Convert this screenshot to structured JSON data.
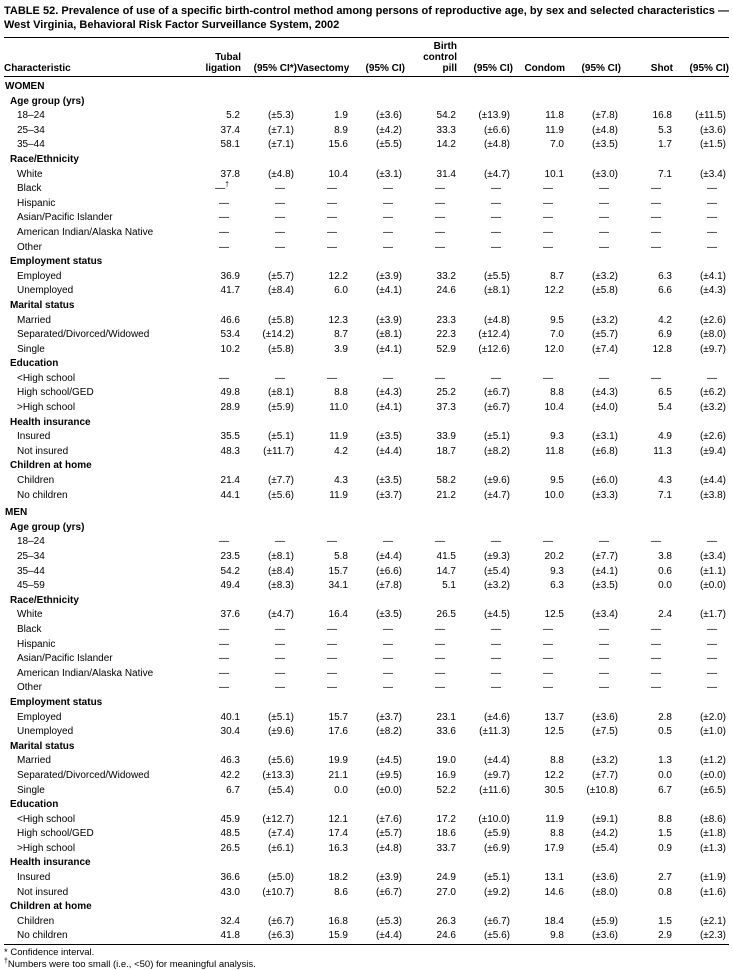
{
  "title": "TABLE 52. Prevalence of use of a specific birth-control method among persons of reproductive age, by sex and selected characteristics — West Virginia, Behavioral Risk Factor Surveillance System, 2002",
  "table": {
    "columns": [
      {
        "id": "characteristic",
        "kind": "label",
        "lines": [
          "Characteristic"
        ]
      },
      {
        "id": "tubal-ligation",
        "kind": "val",
        "lines": [
          "Tubal",
          "ligation"
        ]
      },
      {
        "id": "tubal-ligation-ci",
        "kind": "ci",
        "lines": [
          "(95% CI*)"
        ]
      },
      {
        "id": "vasectomy",
        "kind": "val",
        "lines": [
          "Vasectomy"
        ]
      },
      {
        "id": "vasectomy-ci",
        "kind": "ci",
        "lines": [
          "(95% CI)"
        ]
      },
      {
        "id": "birth-control-pill",
        "kind": "val",
        "lines": [
          "Birth",
          "control",
          "pill"
        ]
      },
      {
        "id": "birth-control-pill-ci",
        "kind": "ci",
        "lines": [
          "(95% CI)"
        ]
      },
      {
        "id": "condom",
        "kind": "val",
        "lines": [
          "Condom"
        ]
      },
      {
        "id": "condom-ci",
        "kind": "ci",
        "lines": [
          "(95% CI)"
        ]
      },
      {
        "id": "shot",
        "kind": "val",
        "lines": [
          "Shot"
        ]
      },
      {
        "id": "shot-ci",
        "kind": "ci",
        "lines": [
          "(95% CI)"
        ]
      }
    ],
    "sections": [
      {
        "label": "WOMEN",
        "groups": [
          {
            "label": "Age group (yrs)",
            "rows": [
              {
                "label": "18–24",
                "values": [
                  "5.2",
                  "(±5.3)",
                  "1.9",
                  "(±3.6)",
                  "54.2",
                  "(±13.9)",
                  "11.8",
                  "(±7.8)",
                  "16.8",
                  "(±11.5)"
                ]
              },
              {
                "label": "25–34",
                "values": [
                  "37.4",
                  "(±7.1)",
                  "8.9",
                  "(±4.2)",
                  "33.3",
                  "(±6.6)",
                  "11.9",
                  "(±4.8)",
                  "5.3",
                  "(±3.6)"
                ]
              },
              {
                "label": "35–44",
                "values": [
                  "58.1",
                  "(±7.1)",
                  "15.6",
                  "(±5.5)",
                  "14.2",
                  "(±4.8)",
                  "7.0",
                  "(±3.5)",
                  "1.7",
                  "(±1.5)"
                ]
              }
            ]
          },
          {
            "label": "Race/Ethnicity",
            "rows": [
              {
                "label": "White",
                "values": [
                  "37.8",
                  "(±4.8)",
                  "10.4",
                  "(±3.1)",
                  "31.4",
                  "(±4.7)",
                  "10.1",
                  "(±3.0)",
                  "7.1",
                  "(±3.4)"
                ]
              },
              {
                "label": "Black",
                "values": [
                  "—†",
                  "—",
                  "—",
                  "—",
                  "—",
                  "—",
                  "—",
                  "—",
                  "—",
                  "—"
                ]
              },
              {
                "label": "Hispanic",
                "values": [
                  "—",
                  "—",
                  "—",
                  "—",
                  "—",
                  "—",
                  "—",
                  "—",
                  "—",
                  "—"
                ]
              },
              {
                "label": "Asian/Pacific Islander",
                "values": [
                  "—",
                  "—",
                  "—",
                  "—",
                  "—",
                  "—",
                  "—",
                  "—",
                  "—",
                  "—"
                ]
              },
              {
                "label": "American Indian/Alaska Native",
                "values": [
                  "—",
                  "—",
                  "—",
                  "—",
                  "—",
                  "—",
                  "—",
                  "—",
                  "—",
                  "—"
                ]
              },
              {
                "label": "Other",
                "values": [
                  "—",
                  "—",
                  "—",
                  "—",
                  "—",
                  "—",
                  "—",
                  "—",
                  "—",
                  "—"
                ]
              }
            ]
          },
          {
            "label": "Employment status",
            "rows": [
              {
                "label": "Employed",
                "values": [
                  "36.9",
                  "(±5.7)",
                  "12.2",
                  "(±3.9)",
                  "33.2",
                  "(±5.5)",
                  "8.7",
                  "(±3.2)",
                  "6.3",
                  "(±4.1)"
                ]
              },
              {
                "label": "Unemployed",
                "values": [
                  "41.7",
                  "(±8.4)",
                  "6.0",
                  "(±4.1)",
                  "24.6",
                  "(±8.1)",
                  "12.2",
                  "(±5.8)",
                  "6.6",
                  "(±4.3)"
                ]
              }
            ]
          },
          {
            "label": "Marital status",
            "rows": [
              {
                "label": "Married",
                "values": [
                  "46.6",
                  "(±5.8)",
                  "12.3",
                  "(±3.9)",
                  "23.3",
                  "(±4.8)",
                  "9.5",
                  "(±3.2)",
                  "4.2",
                  "(±2.6)"
                ]
              },
              {
                "label": "Separated/Divorced/Widowed",
                "values": [
                  "53.4",
                  "(±14.2)",
                  "8.7",
                  "(±8.1)",
                  "22.3",
                  "(±12.4)",
                  "7.0",
                  "(±5.7)",
                  "6.9",
                  "(±8.0)"
                ]
              },
              {
                "label": "Single",
                "values": [
                  "10.2",
                  "(±5.8)",
                  "3.9",
                  "(±4.1)",
                  "52.9",
                  "(±12.6)",
                  "12.0",
                  "(±7.4)",
                  "12.8",
                  "(±9.7)"
                ]
              }
            ]
          },
          {
            "label": "Education",
            "rows": [
              {
                "label": "<High school",
                "values": [
                  "—",
                  "—",
                  "—",
                  "—",
                  "—",
                  "—",
                  "—",
                  "—",
                  "—",
                  "—"
                ]
              },
              {
                "label": "High school/GED",
                "values": [
                  "49.8",
                  "(±8.1)",
                  "8.8",
                  "(±4.3)",
                  "25.2",
                  "(±6.7)",
                  "8.8",
                  "(±4.3)",
                  "6.5",
                  "(±6.2)"
                ]
              },
              {
                "label": ">High school",
                "values": [
                  "28.9",
                  "(±5.9)",
                  "11.0",
                  "(±4.1)",
                  "37.3",
                  "(±6.7)",
                  "10.4",
                  "(±4.0)",
                  "5.4",
                  "(±3.2)"
                ]
              }
            ]
          },
          {
            "label": "Health insurance",
            "rows": [
              {
                "label": "Insured",
                "values": [
                  "35.5",
                  "(±5.1)",
                  "11.9",
                  "(±3.5)",
                  "33.9",
                  "(±5.1)",
                  "9.3",
                  "(±3.1)",
                  "4.9",
                  "(±2.6)"
                ]
              },
              {
                "label": "Not insured",
                "values": [
                  "48.3",
                  "(±11.7)",
                  "4.2",
                  "(±4.4)",
                  "18.7",
                  "(±8.2)",
                  "11.8",
                  "(±6.8)",
                  "11.3",
                  "(±9.4)"
                ]
              }
            ]
          },
          {
            "label": "Children at home",
            "rows": [
              {
                "label": "Children",
                "values": [
                  "21.4",
                  "(±7.7)",
                  "4.3",
                  "(±3.5)",
                  "58.2",
                  "(±9.6)",
                  "9.5",
                  "(±6.0)",
                  "4.3",
                  "(±4.4)"
                ]
              },
              {
                "label": "No children",
                "values": [
                  "44.1",
                  "(±5.6)",
                  "11.9",
                  "(±3.7)",
                  "21.2",
                  "(±4.7)",
                  "10.0",
                  "(±3.3)",
                  "7.1",
                  "(±3.8)"
                ]
              }
            ]
          }
        ]
      },
      {
        "label": "MEN",
        "groups": [
          {
            "label": "Age group (yrs)",
            "rows": [
              {
                "label": "18–24",
                "values": [
                  "—",
                  "—",
                  "—",
                  "—",
                  "—",
                  "—",
                  "—",
                  "—",
                  "—",
                  "—"
                ]
              },
              {
                "label": "25–34",
                "values": [
                  "23.5",
                  "(±8.1)",
                  "5.8",
                  "(±4.4)",
                  "41.5",
                  "(±9.3)",
                  "20.2",
                  "(±7.7)",
                  "3.8",
                  "(±3.4)"
                ]
              },
              {
                "label": "35–44",
                "values": [
                  "54.2",
                  "(±8.4)",
                  "15.7",
                  "(±6.6)",
                  "14.7",
                  "(±5.4)",
                  "9.3",
                  "(±4.1)",
                  "0.6",
                  "(±1.1)"
                ]
              },
              {
                "label": "45–59",
                "values": [
                  "49.4",
                  "(±8.3)",
                  "34.1",
                  "(±7.8)",
                  "5.1",
                  "(±3.2)",
                  "6.3",
                  "(±3.5)",
                  "0.0",
                  "(±0.0)"
                ]
              }
            ]
          },
          {
            "label": "Race/Ethnicity",
            "rows": [
              {
                "label": "White",
                "values": [
                  "37.6",
                  "(±4.7)",
                  "16.4",
                  "(±3.5)",
                  "26.5",
                  "(±4.5)",
                  "12.5",
                  "(±3.4)",
                  "2.4",
                  "(±1.7)"
                ]
              },
              {
                "label": "Black",
                "values": [
                  "—",
                  "—",
                  "—",
                  "—",
                  "—",
                  "—",
                  "—",
                  "—",
                  "—",
                  "—"
                ]
              },
              {
                "label": "Hispanic",
                "values": [
                  "—",
                  "—",
                  "—",
                  "—",
                  "—",
                  "—",
                  "—",
                  "—",
                  "—",
                  "—"
                ]
              },
              {
                "label": "Asian/Pacific Islander",
                "values": [
                  "—",
                  "—",
                  "—",
                  "—",
                  "—",
                  "—",
                  "—",
                  "—",
                  "—",
                  "—"
                ]
              },
              {
                "label": "American Indian/Alaska Native",
                "values": [
                  "—",
                  "—",
                  "—",
                  "—",
                  "—",
                  "—",
                  "—",
                  "—",
                  "—",
                  "—"
                ]
              },
              {
                "label": "Other",
                "values": [
                  "—",
                  "—",
                  "—",
                  "—",
                  "—",
                  "—",
                  "—",
                  "—",
                  "—",
                  "—"
                ]
              }
            ]
          },
          {
            "label": "Employment status",
            "rows": [
              {
                "label": "Employed",
                "values": [
                  "40.1",
                  "(±5.1)",
                  "15.7",
                  "(±3.7)",
                  "23.1",
                  "(±4.6)",
                  "13.7",
                  "(±3.6)",
                  "2.8",
                  "(±2.0)"
                ]
              },
              {
                "label": "Unemployed",
                "values": [
                  "30.4",
                  "(±9.6)",
                  "17.6",
                  "(±8.2)",
                  "33.6",
                  "(±11.3)",
                  "12.5",
                  "(±7.5)",
                  "0.5",
                  "(±1.0)"
                ]
              }
            ]
          },
          {
            "label": "Marital status",
            "rows": [
              {
                "label": "Married",
                "values": [
                  "46.3",
                  "(±5.6)",
                  "19.9",
                  "(±4.5)",
                  "19.0",
                  "(±4.4)",
                  "8.8",
                  "(±3.2)",
                  "1.3",
                  "(±1.2)"
                ]
              },
              {
                "label": "Separated/Divorced/Widowed",
                "values": [
                  "42.2",
                  "(±13.3)",
                  "21.1",
                  "(±9.5)",
                  "16.9",
                  "(±9.7)",
                  "12.2",
                  "(±7.7)",
                  "0.0",
                  "(±0.0)"
                ]
              },
              {
                "label": "Single",
                "values": [
                  "6.7",
                  "(±5.4)",
                  "0.0",
                  "(±0.0)",
                  "52.2",
                  "(±11.6)",
                  "30.5",
                  "(±10.8)",
                  "6.7",
                  "(±6.5)"
                ]
              }
            ]
          },
          {
            "label": "Education",
            "rows": [
              {
                "label": "<High school",
                "values": [
                  "45.9",
                  "(±12.7)",
                  "12.1",
                  "(±7.6)",
                  "17.2",
                  "(±10.0)",
                  "11.9",
                  "(±9.1)",
                  "8.8",
                  "(±8.6)"
                ]
              },
              {
                "label": "High school/GED",
                "values": [
                  "48.5",
                  "(±7.4)",
                  "17.4",
                  "(±5.7)",
                  "18.6",
                  "(±5.9)",
                  "8.8",
                  "(±4.2)",
                  "1.5",
                  "(±1.8)"
                ]
              },
              {
                "label": ">High school",
                "values": [
                  "26.5",
                  "(±6.1)",
                  "16.3",
                  "(±4.8)",
                  "33.7",
                  "(±6.9)",
                  "17.9",
                  "(±5.4)",
                  "0.9",
                  "(±1.3)"
                ]
              }
            ]
          },
          {
            "label": "Health insurance",
            "rows": [
              {
                "label": "Insured",
                "values": [
                  "36.6",
                  "(±5.0)",
                  "18.2",
                  "(±3.9)",
                  "24.9",
                  "(±5.1)",
                  "13.1",
                  "(±3.6)",
                  "2.7",
                  "(±1.9)"
                ]
              },
              {
                "label": "Not insured",
                "values": [
                  "43.0",
                  "(±10.7)",
                  "8.6",
                  "(±6.7)",
                  "27.0",
                  "(±9.2)",
                  "14.6",
                  "(±8.0)",
                  "0.8",
                  "(±1.6)"
                ]
              }
            ]
          },
          {
            "label": "Children at home",
            "rows": [
              {
                "label": "Children",
                "values": [
                  "32.4",
                  "(±6.7)",
                  "16.8",
                  "(±5.3)",
                  "26.3",
                  "(±6.7)",
                  "18.4",
                  "(±5.9)",
                  "1.5",
                  "(±2.1)"
                ]
              },
              {
                "label": "No children",
                "values": [
                  "41.8",
                  "(±6.3)",
                  "15.9",
                  "(±4.4)",
                  "24.6",
                  "(±5.6)",
                  "9.8",
                  "(±3.6)",
                  "2.9",
                  "(±2.3)"
                ]
              }
            ]
          }
        ]
      }
    ]
  },
  "footnotes": [
    {
      "marker": "*",
      "superscript": false,
      "text": "Confidence interval."
    },
    {
      "marker": "†",
      "superscript": true,
      "text": "Numbers were too small (i.e., <50) for meaningful analysis."
    }
  ]
}
